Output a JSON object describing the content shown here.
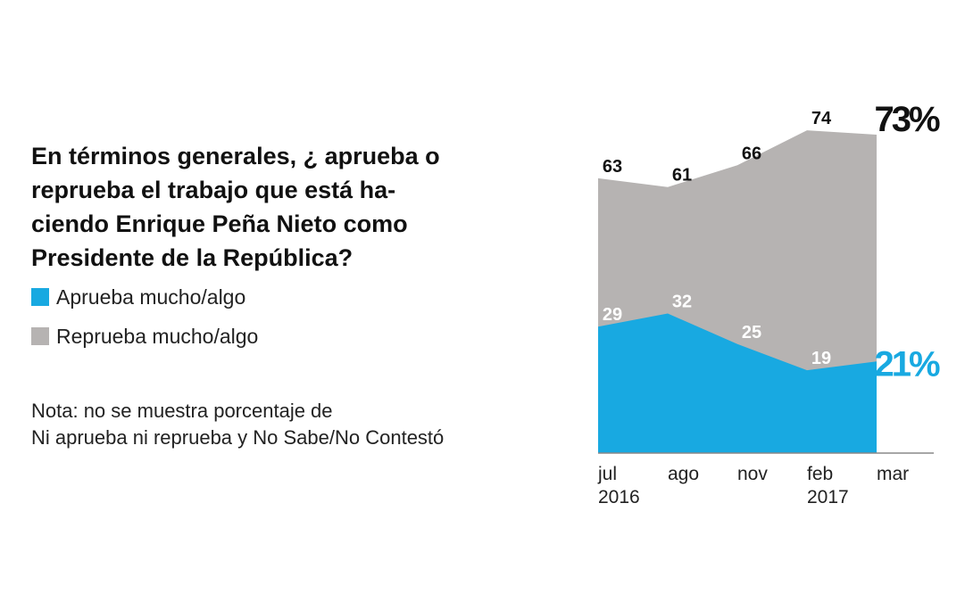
{
  "chart_data": {
    "type": "area",
    "title": "En términos generales, ¿ aprueba o\nreprueba el trabajo que está ha-\nciendo Enrique Peña Nieto como\nPresidente de la República?",
    "note": "Nota: no se muestra porcentaje de\nNi aprueba ni reprueba y No Sabe/No Contestó",
    "categories": [
      "jul 2016",
      "ago",
      "nov",
      "feb 2017",
      "mar"
    ],
    "series": [
      {
        "name": "Aprueba mucho/algo",
        "color": "#18a9e1",
        "values": [
          29,
          32,
          25,
          19,
          21
        ],
        "value_labels": [
          "29",
          "32",
          "25",
          "19",
          "21%"
        ]
      },
      {
        "name": "Reprueba mucho/algo",
        "color": "#b6b3b2",
        "values": [
          63,
          61,
          66,
          74,
          73
        ],
        "value_labels": [
          "63",
          "61",
          "66",
          "74",
          "73%"
        ]
      }
    ]
  }
}
